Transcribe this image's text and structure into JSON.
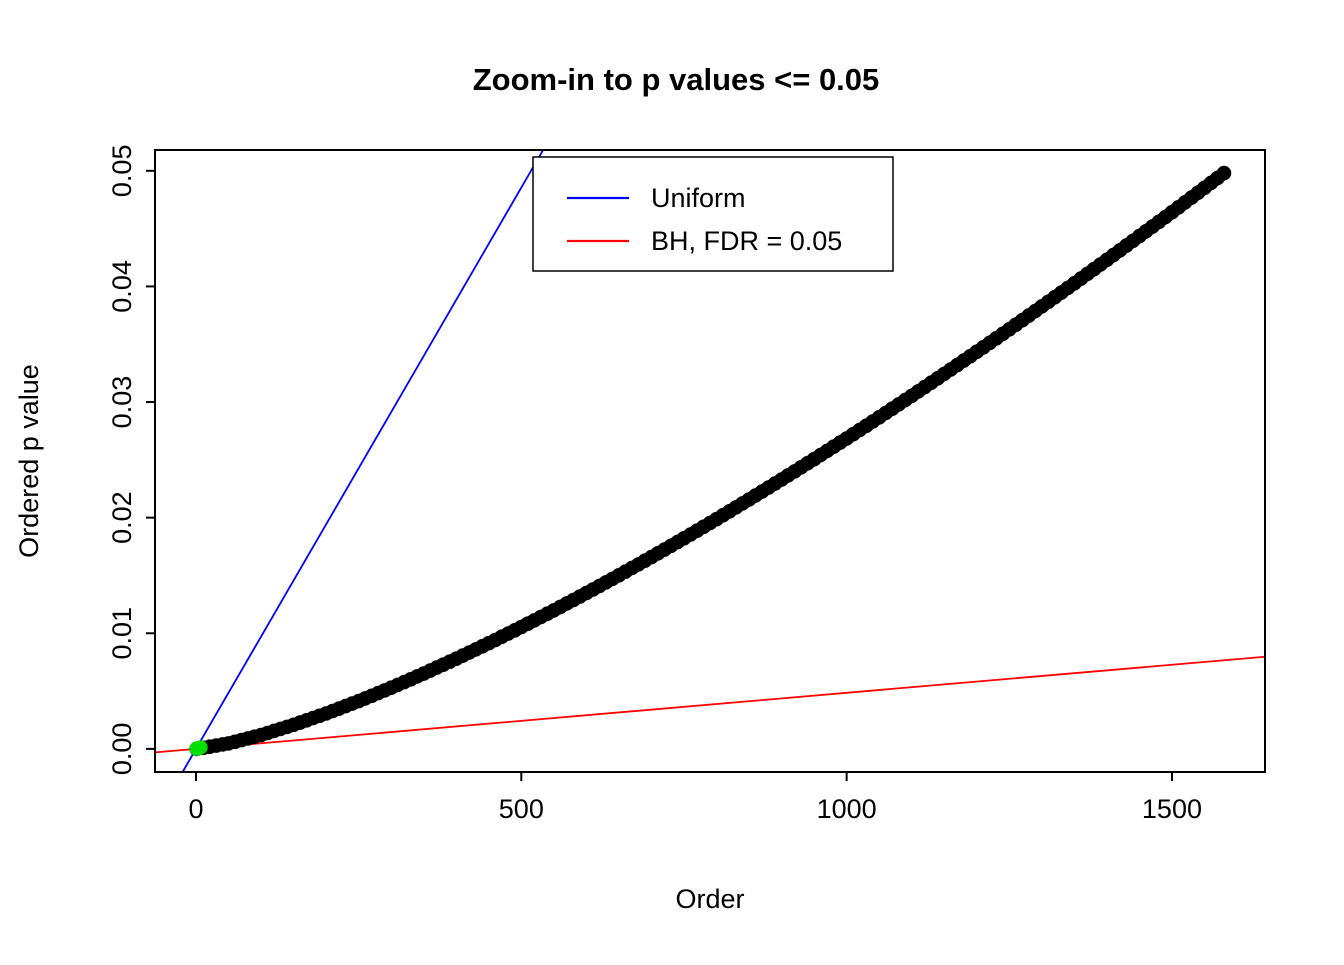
{
  "chart_data": {
    "type": "scatter",
    "title": "Zoom-in to p values <= 0.05",
    "xlabel": "Order",
    "ylabel": "Ordered p value",
    "xlim": [
      -63,
      1643
    ],
    "ylim": [
      -0.002,
      0.0518
    ],
    "x_tick_values": [
      0,
      500,
      1000,
      1500
    ],
    "x_tick_labels": [
      "0",
      "500",
      "1000",
      "1500"
    ],
    "y_tick_values": [
      0,
      0.01,
      0.02,
      0.03,
      0.04,
      0.05
    ],
    "y_tick_labels": [
      "0.00",
      "0.01",
      "0.02",
      "0.03",
      "0.04",
      "0.05"
    ],
    "grid": false,
    "legend": {
      "position": "top-center-inside",
      "entries": [
        {
          "label": "Uniform",
          "color": "#0000FF"
        },
        {
          "label": "BH, FDR = 0.05",
          "color": "#FF0000"
        }
      ]
    },
    "lines": [
      {
        "name": "Uniform",
        "color": "#0000FF",
        "intercept": 0,
        "slope": 9.71e-05
      },
      {
        "name": "BH, FDR = 0.05",
        "color": "#FF0000",
        "intercept": 0,
        "slope": 4.85e-06
      }
    ],
    "scatter": {
      "name": "Ordered p values",
      "color": "#000000",
      "marker": "open-circle",
      "n_points": 1580,
      "points_sampled_every": 50,
      "points": [
        [
          1,
          0.0
        ],
        [
          50,
          0.00047
        ],
        [
          100,
          0.0012
        ],
        [
          150,
          0.00208
        ],
        [
          200,
          0.00306
        ],
        [
          250,
          0.00413
        ],
        [
          300,
          0.00529
        ],
        [
          350,
          0.00651
        ],
        [
          400,
          0.0078
        ],
        [
          450,
          0.00914
        ],
        [
          500,
          0.01054
        ],
        [
          550,
          0.01198
        ],
        [
          600,
          0.01348
        ],
        [
          650,
          0.01501
        ],
        [
          700,
          0.01659
        ],
        [
          750,
          0.01821
        ],
        [
          800,
          0.01987
        ],
        [
          850,
          0.02157
        ],
        [
          900,
          0.0233
        ],
        [
          950,
          0.02506
        ],
        [
          1000,
          0.02685
        ],
        [
          1050,
          0.02868
        ],
        [
          1100,
          0.03054
        ],
        [
          1150,
          0.03243
        ],
        [
          1200,
          0.03435
        ],
        [
          1250,
          0.03629
        ],
        [
          1300,
          0.03827
        ],
        [
          1350,
          0.04027
        ],
        [
          1400,
          0.0423
        ],
        [
          1450,
          0.04435
        ],
        [
          1500,
          0.04642
        ],
        [
          1550,
          0.04853
        ],
        [
          1580,
          0.0498
        ]
      ]
    },
    "significant_points": {
      "name": "BH significant points",
      "color": "#00DF00",
      "points": [
        [
          1,
          2e-05
        ],
        [
          4,
          7e-05
        ],
        [
          7,
          0.00013
        ]
      ]
    }
  }
}
